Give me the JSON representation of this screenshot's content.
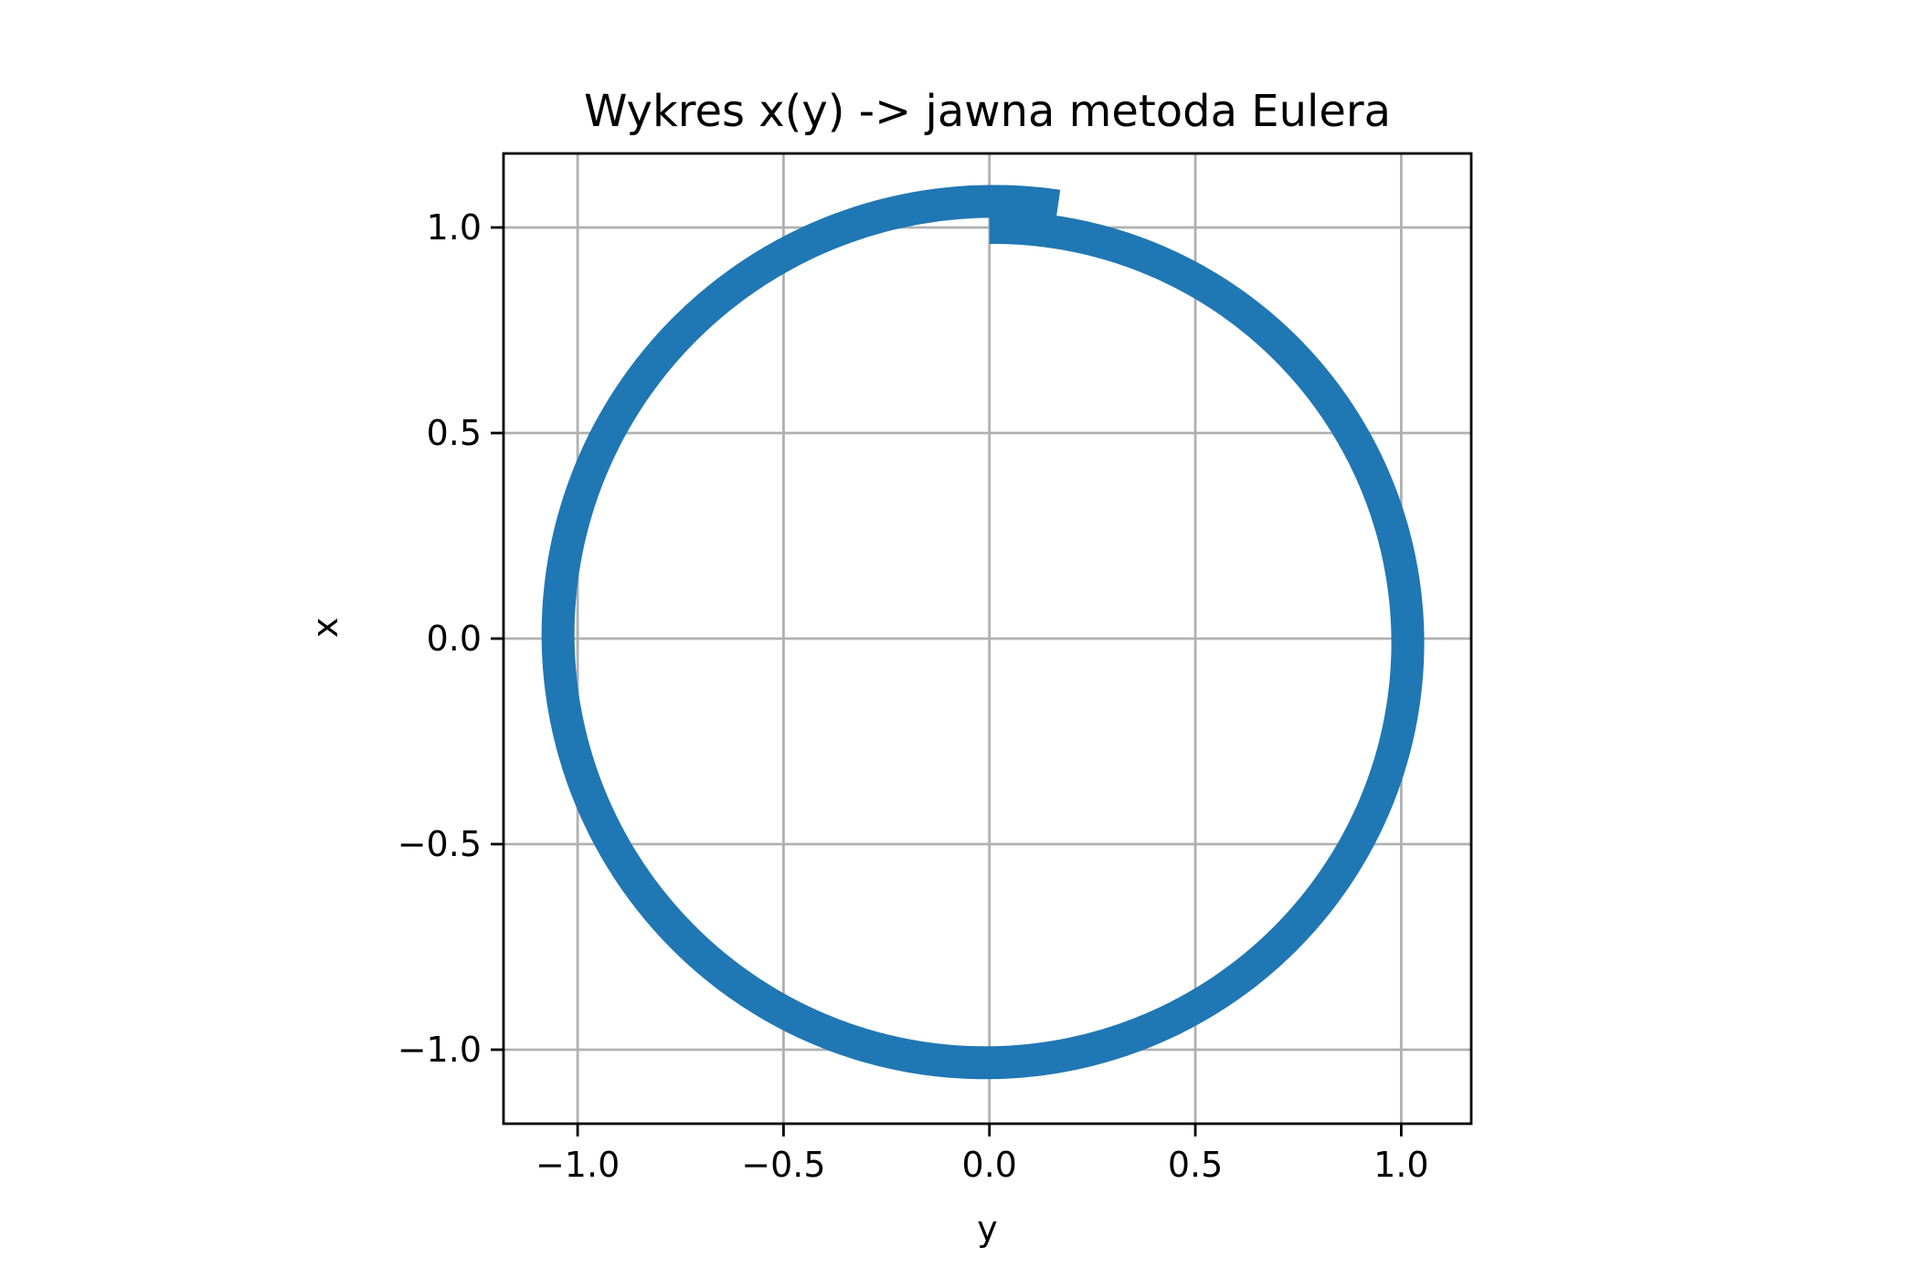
{
  "chart_data": {
    "type": "line",
    "title": "Wykres x(y) -> jawna metoda Eulera",
    "xlabel": "y",
    "ylabel": "x",
    "xlim": [
      -1.18,
      1.17
    ],
    "ylim": [
      -1.18,
      1.18
    ],
    "xticks": [
      -1.0,
      -0.5,
      0.0,
      0.5,
      1.0
    ],
    "xtick_labels": [
      "−1.0",
      "−0.5",
      "0.0",
      "0.5",
      "1.0"
    ],
    "yticks": [
      1.0,
      0.5,
      0.0,
      -0.5,
      -1.0
    ],
    "ytick_labels": [
      "1.0",
      "0.5",
      "0.0",
      "−0.5",
      "−1.0"
    ],
    "grid": true,
    "aspect": "equal",
    "series": [
      {
        "color": "#1f77b4",
        "description_points": [
          {
            "y": 0.0,
            "x": 1.0
          },
          {
            "y": 0.5,
            "x": 0.87
          },
          {
            "y": 1.03,
            "x": 0.0
          },
          {
            "y": 0.0,
            "x": -1.035
          },
          {
            "y": -1.05,
            "x": 0.0
          },
          {
            "y": 0.0,
            "x": 1.05
          },
          {
            "y": 0.17,
            "x": 1.065
          }
        ],
        "parametric": {
          "t_start": 0,
          "t_end": 6.44,
          "r_start": 1.0,
          "r_end": 1.065
        }
      }
    ]
  }
}
